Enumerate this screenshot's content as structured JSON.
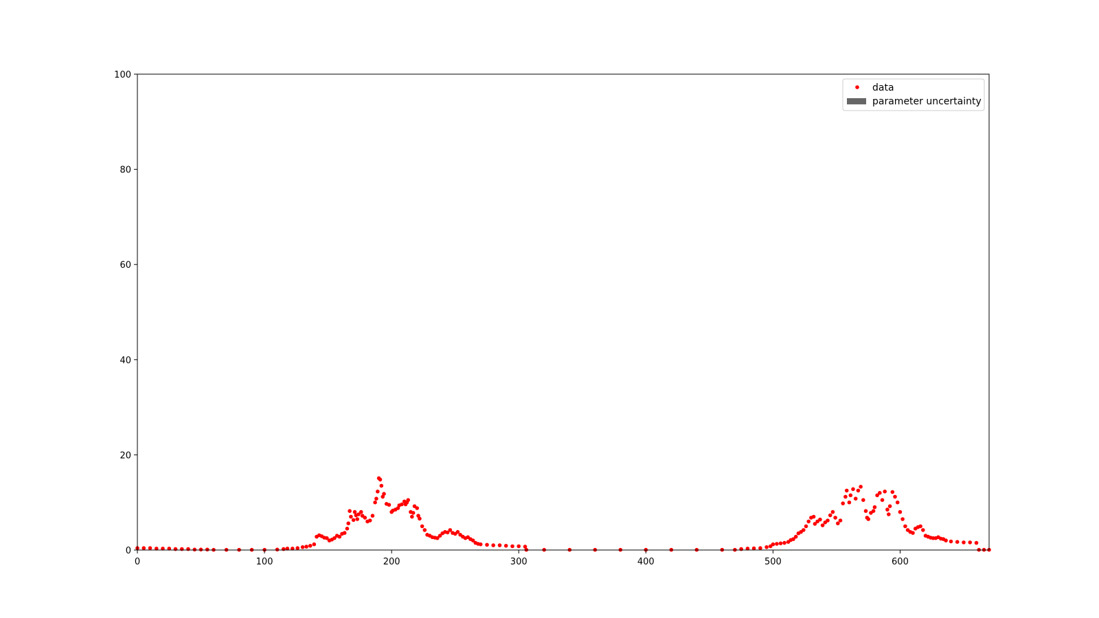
{
  "chart_data": {
    "type": "scatter",
    "title": "",
    "xlabel": "",
    "ylabel": "",
    "xlim": [
      0,
      670
    ],
    "ylim": [
      0,
      100
    ],
    "x_ticks": [
      0,
      100,
      200,
      300,
      400,
      500,
      600
    ],
    "y_ticks": [
      0,
      20,
      40,
      60,
      80,
      100
    ],
    "grid": false,
    "legend": {
      "placement": "upper-right",
      "entries": [
        {
          "label": "data",
          "marker": "dot",
          "color": "#ff0000"
        },
        {
          "label": "parameter uncertainty",
          "marker": "band",
          "color": "#666666"
        }
      ]
    },
    "series": [
      {
        "name": "data",
        "color": "#ff0000",
        "points": [
          [
            0,
            0.4
          ],
          [
            5,
            0.4
          ],
          [
            10,
            0.4
          ],
          [
            15,
            0.3
          ],
          [
            20,
            0.3
          ],
          [
            25,
            0.3
          ],
          [
            30,
            0.2
          ],
          [
            35,
            0.2
          ],
          [
            40,
            0.2
          ],
          [
            45,
            0.1
          ],
          [
            50,
            0.1
          ],
          [
            55,
            0.1
          ],
          [
            60,
            0.05
          ],
          [
            70,
            0.05
          ],
          [
            80,
            0.05
          ],
          [
            90,
            0.05
          ],
          [
            100,
            0.05
          ],
          [
            110,
            0.1
          ],
          [
            115,
            0.2
          ],
          [
            118,
            0.3
          ],
          [
            122,
            0.3
          ],
          [
            126,
            0.4
          ],
          [
            130,
            0.6
          ],
          [
            133,
            0.7
          ],
          [
            136,
            0.9
          ],
          [
            139,
            1.2
          ],
          [
            141,
            2.8
          ],
          [
            143,
            3.1
          ],
          [
            145,
            2.9
          ],
          [
            147,
            2.6
          ],
          [
            149,
            2.5
          ],
          [
            151,
            2.0
          ],
          [
            153,
            2.2
          ],
          [
            155,
            2.5
          ],
          [
            157,
            3.0
          ],
          [
            159,
            2.8
          ],
          [
            161,
            3.4
          ],
          [
            163,
            3.6
          ],
          [
            165,
            4.5
          ],
          [
            166,
            5.6
          ],
          [
            167,
            8.2
          ],
          [
            168,
            7.0
          ],
          [
            170,
            6.3
          ],
          [
            171,
            8.0
          ],
          [
            172,
            7.3
          ],
          [
            173,
            6.5
          ],
          [
            174,
            7.5
          ],
          [
            176,
            8.0
          ],
          [
            177,
            7.2
          ],
          [
            179,
            6.8
          ],
          [
            181,
            6.0
          ],
          [
            183,
            6.2
          ],
          [
            185,
            7.2
          ],
          [
            187,
            10.0
          ],
          [
            188,
            10.8
          ],
          [
            189,
            12.3
          ],
          [
            190,
            15.1
          ],
          [
            191,
            14.8
          ],
          [
            192,
            13.5
          ],
          [
            193,
            11.2
          ],
          [
            194,
            11.8
          ],
          [
            196,
            9.7
          ],
          [
            198,
            9.5
          ],
          [
            200,
            8.0
          ],
          [
            201,
            8.3
          ],
          [
            203,
            8.5
          ],
          [
            205,
            8.8
          ],
          [
            206,
            9.4
          ],
          [
            208,
            9.6
          ],
          [
            210,
            10.2
          ],
          [
            211,
            9.6
          ],
          [
            212,
            10.0
          ],
          [
            213,
            10.5
          ],
          [
            215,
            8.0
          ],
          [
            216,
            7.0
          ],
          [
            217,
            7.8
          ],
          [
            218,
            9.2
          ],
          [
            220,
            8.8
          ],
          [
            221,
            7.2
          ],
          [
            222,
            6.6
          ],
          [
            224,
            5.0
          ],
          [
            226,
            4.2
          ],
          [
            228,
            3.2
          ],
          [
            230,
            3.0
          ],
          [
            232,
            2.7
          ],
          [
            234,
            2.6
          ],
          [
            236,
            2.5
          ],
          [
            238,
            3.0
          ],
          [
            240,
            3.5
          ],
          [
            242,
            3.8
          ],
          [
            244,
            3.7
          ],
          [
            246,
            4.2
          ],
          [
            248,
            3.6
          ],
          [
            250,
            3.4
          ],
          [
            252,
            3.8
          ],
          [
            254,
            3.2
          ],
          [
            256,
            2.8
          ],
          [
            258,
            2.5
          ],
          [
            260,
            2.7
          ],
          [
            262,
            2.3
          ],
          [
            264,
            2.0
          ],
          [
            266,
            1.5
          ],
          [
            268,
            1.3
          ],
          [
            270,
            1.2
          ],
          [
            275,
            1.1
          ],
          [
            280,
            1.0
          ],
          [
            285,
            1.0
          ],
          [
            290,
            0.9
          ],
          [
            295,
            0.8
          ],
          [
            300,
            0.8
          ],
          [
            305,
            0.7
          ],
          [
            306,
            0.05
          ],
          [
            320,
            0.05
          ],
          [
            340,
            0.05
          ],
          [
            360,
            0.05
          ],
          [
            380,
            0.05
          ],
          [
            400,
            0.05
          ],
          [
            420,
            0.05
          ],
          [
            440,
            0.05
          ],
          [
            460,
            0.05
          ],
          [
            470,
            0.05
          ],
          [
            475,
            0.2
          ],
          [
            480,
            0.3
          ],
          [
            485,
            0.35
          ],
          [
            490,
            0.4
          ],
          [
            495,
            0.6
          ],
          [
            498,
            0.8
          ],
          [
            500,
            1.2
          ],
          [
            503,
            1.3
          ],
          [
            506,
            1.4
          ],
          [
            509,
            1.5
          ],
          [
            512,
            1.7
          ],
          [
            514,
            2.1
          ],
          [
            516,
            2.3
          ],
          [
            518,
            2.8
          ],
          [
            520,
            3.5
          ],
          [
            522,
            3.8
          ],
          [
            524,
            4.2
          ],
          [
            526,
            5.0
          ],
          [
            528,
            6.0
          ],
          [
            530,
            6.8
          ],
          [
            532,
            7.0
          ],
          [
            533,
            5.5
          ],
          [
            535,
            6.0
          ],
          [
            537,
            6.4
          ],
          [
            539,
            5.2
          ],
          [
            541,
            5.8
          ],
          [
            543,
            6.2
          ],
          [
            545,
            7.3
          ],
          [
            547,
            8.0
          ],
          [
            549,
            6.8
          ],
          [
            551,
            5.6
          ],
          [
            553,
            6.2
          ],
          [
            555,
            9.8
          ],
          [
            557,
            11.2
          ],
          [
            558,
            12.5
          ],
          [
            560,
            10.0
          ],
          [
            561,
            11.5
          ],
          [
            563,
            12.8
          ],
          [
            565,
            10.8
          ],
          [
            567,
            12.5
          ],
          [
            569,
            13.3
          ],
          [
            571,
            10.5
          ],
          [
            573,
            8.2
          ],
          [
            574,
            6.8
          ],
          [
            575,
            6.5
          ],
          [
            577,
            7.8
          ],
          [
            579,
            8.2
          ],
          [
            580,
            9.0
          ],
          [
            582,
            11.5
          ],
          [
            584,
            12.0
          ],
          [
            586,
            10.5
          ],
          [
            588,
            12.3
          ],
          [
            590,
            8.5
          ],
          [
            591,
            7.5
          ],
          [
            592,
            9.2
          ],
          [
            594,
            12.2
          ],
          [
            596,
            11.2
          ],
          [
            598,
            10.0
          ],
          [
            600,
            8.0
          ],
          [
            602,
            6.5
          ],
          [
            604,
            5.0
          ],
          [
            606,
            4.2
          ],
          [
            608,
            3.8
          ],
          [
            610,
            3.6
          ],
          [
            612,
            4.5
          ],
          [
            614,
            4.8
          ],
          [
            616,
            5.0
          ],
          [
            618,
            4.2
          ],
          [
            620,
            3.0
          ],
          [
            622,
            2.8
          ],
          [
            624,
            2.6
          ],
          [
            626,
            2.5
          ],
          [
            628,
            2.5
          ],
          [
            630,
            2.7
          ],
          [
            632,
            2.4
          ],
          [
            634,
            2.3
          ],
          [
            636,
            2.0
          ],
          [
            640,
            1.8
          ],
          [
            645,
            1.7
          ],
          [
            650,
            1.6
          ],
          [
            655,
            1.6
          ],
          [
            660,
            1.5
          ],
          [
            662,
            0.05
          ],
          [
            666,
            0.05
          ],
          [
            670,
            0.05
          ]
        ]
      }
    ]
  }
}
